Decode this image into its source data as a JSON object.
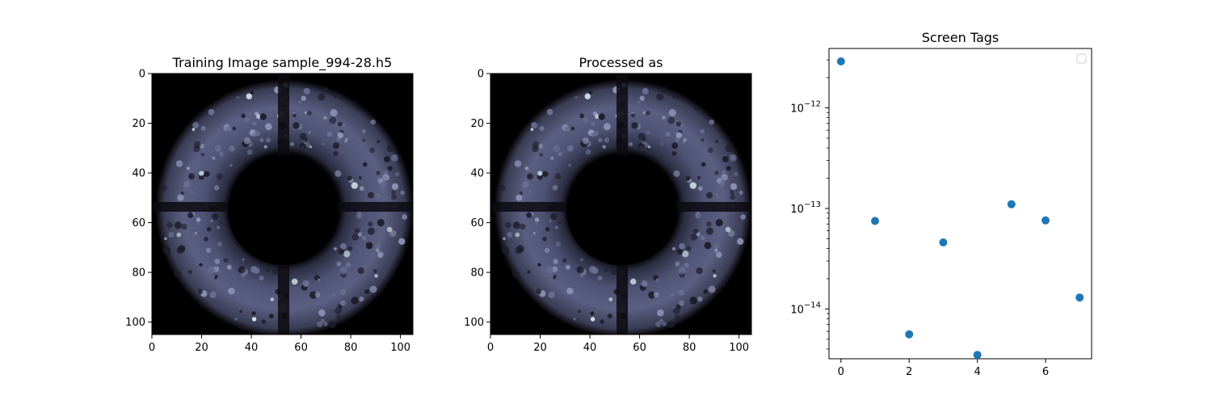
{
  "colors": {
    "background": "#ffffff",
    "image_cmap_dark": "#000000",
    "image_cmap_mid": "#5b5f82",
    "image_cmap_bright": "#dff1f1",
    "marker": "#1f77b4",
    "axes": "#000000"
  },
  "chart_data": [
    {
      "type": "heatmap",
      "title": "Training Image sample_994-28.h5",
      "xticks": [
        0,
        20,
        40,
        60,
        80,
        100
      ],
      "yticks": [
        0,
        20,
        40,
        60,
        80,
        100
      ],
      "xlim": [
        0,
        105
      ],
      "ylim": [
        105,
        0
      ],
      "colormap": "bone",
      "description": "ring"
    },
    {
      "type": "heatmap",
      "title": "Processed as",
      "xticks": [
        0,
        20,
        40,
        60,
        80,
        100
      ],
      "yticks": [
        0,
        20,
        40,
        60,
        80,
        100
      ],
      "xlim": [
        0,
        105
      ],
      "ylim": [
        105,
        0
      ],
      "colormap": "bone"
    },
    {
      "type": "scatter",
      "title": "Screen Tags",
      "xticks": [
        0,
        2,
        4,
        6
      ],
      "y_scale": "log",
      "ytick_exponents": [
        -12,
        -13,
        -14
      ],
      "xlim": [
        -0.35,
        7.35
      ],
      "ylim": [
        3.2e-15,
        3.9e-12
      ],
      "x": [
        0,
        1,
        2,
        3,
        4,
        5,
        6,
        7
      ],
      "y": [
        2.9e-12,
        7.5e-14,
        5.6e-15,
        4.6e-14,
        3.5e-15,
        1.1e-13,
        7.6e-14,
        1.3e-14
      ],
      "legend": "top-right"
    }
  ]
}
